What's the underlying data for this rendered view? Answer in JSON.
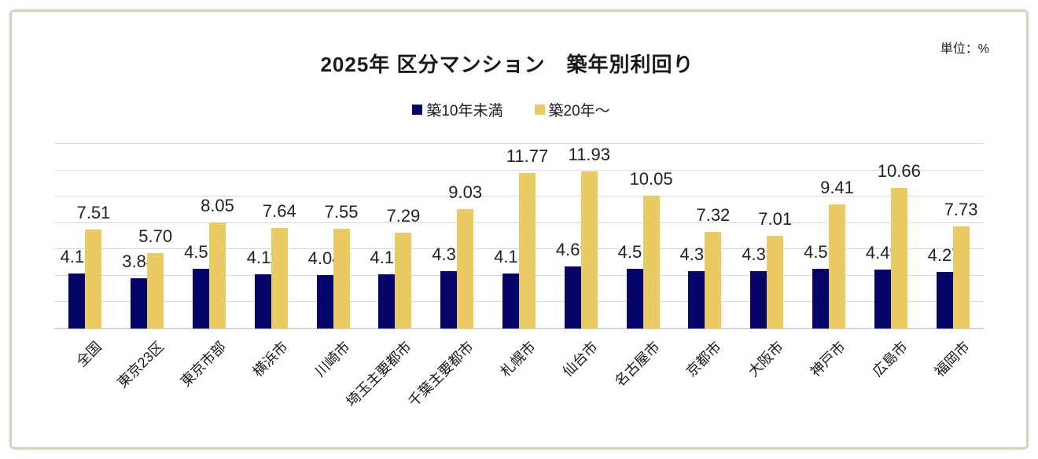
{
  "title": "2025年 区分マンション　築年別利回り",
  "unit_label": "単位：%",
  "colors": {
    "series_under10": "#06066a",
    "series_over20": "#eaca63",
    "gridline": "#d9d9d9",
    "frame_border": "#d8d1bd"
  },
  "legend": [
    {
      "label": "築10年未満",
      "color": "#06066a"
    },
    {
      "label": "築20年〜",
      "color": "#eaca63"
    }
  ],
  "chart_data": {
    "type": "bar",
    "title": "2025年 区分マンション　築年別利回り",
    "unit": "%",
    "categories": [
      "全国",
      "東京23区",
      "東京市部",
      "横浜市",
      "川崎市",
      "埼玉主要都市",
      "千葉主要都市",
      "札幌市",
      "仙台市",
      "名古屋市",
      "京都市",
      "大阪市",
      "神戸市",
      "広島市",
      "福岡市"
    ],
    "series": [
      {
        "name": "築10年未満",
        "color": "#06066a",
        "values": [
          4.15,
          3.84,
          4.51,
          4.11,
          4.04,
          4.12,
          4.36,
          4.15,
          4.69,
          4.51,
          4.36,
          4.33,
          4.51,
          4.49,
          4.27
        ]
      },
      {
        "name": "築20年〜",
        "color": "#eaca63",
        "values": [
          7.51,
          5.7,
          8.05,
          7.64,
          7.55,
          7.29,
          9.03,
          11.77,
          11.93,
          10.05,
          7.32,
          7.01,
          9.41,
          10.66,
          7.73
        ]
      }
    ],
    "ylim": [
      0,
      14
    ],
    "grid_interval": 2,
    "grid": "on",
    "legend_position": "top-center",
    "value_labels": "shown",
    "value_label_decimals": 2,
    "xlabel": "",
    "ylabel": ""
  }
}
